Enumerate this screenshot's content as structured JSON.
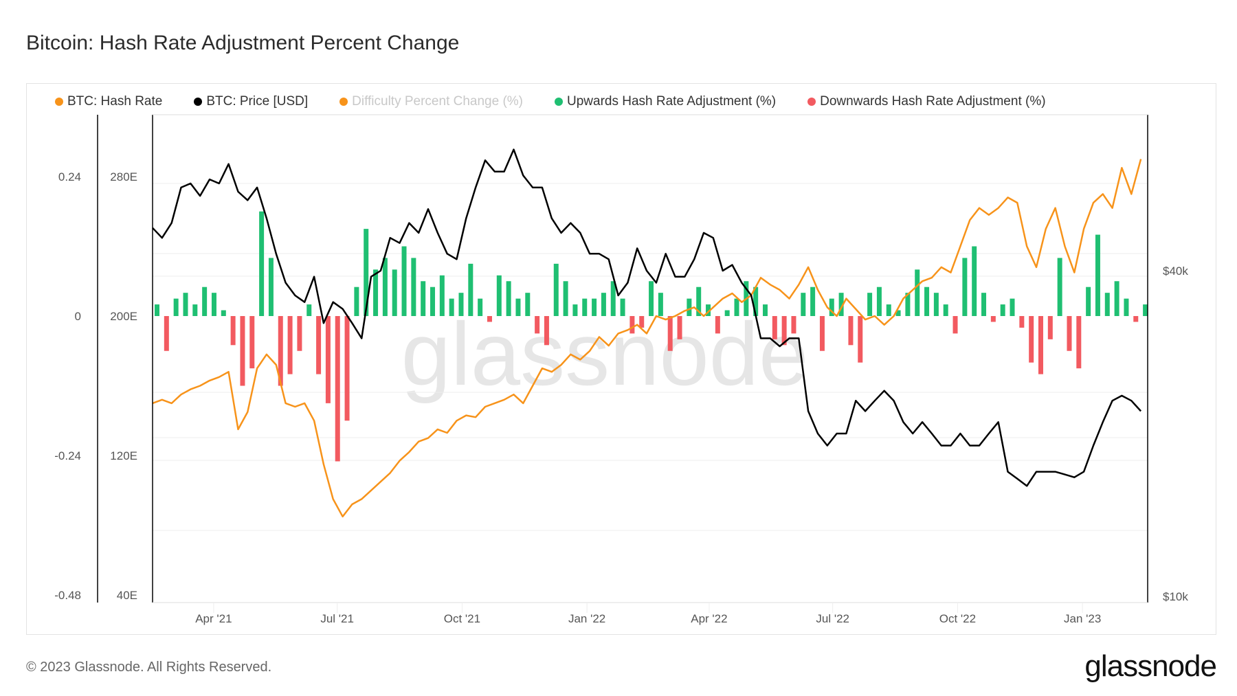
{
  "header": {
    "title": "Bitcoin: Hash Rate Adjustment Percent Change"
  },
  "footer": {
    "copyright": "© 2023 Glassnode. All Rights Reserved.",
    "logo": "glassnode",
    "watermark": "glassnode"
  },
  "colors": {
    "hash_rate": "#f7931a",
    "price": "#000000",
    "difficulty": "#f7931a",
    "up": "#1fbf72",
    "down": "#f25a60"
  },
  "chart_data": {
    "type": "line+bar",
    "title": "Bitcoin: Hash Rate Adjustment Percent Change",
    "legend_position": "top-left",
    "legend": [
      {
        "name": "BTC: Hash Rate",
        "color": "#f7931a",
        "active": true
      },
      {
        "name": "BTC: Price [USD]",
        "color": "#000000",
        "active": true
      },
      {
        "name": "Difficulty Percent Change (%)",
        "color": "#f7931a",
        "active": false
      },
      {
        "name": "Upwards Hash Rate Adjustment (%)",
        "color": "#1fbf72",
        "active": true
      },
      {
        "name": "Downwards Hash Rate Adjustment (%)",
        "color": "#f25a60",
        "active": true
      }
    ],
    "x_ticks": [
      "Apr '21",
      "Jul '21",
      "Oct '21",
      "Jan '22",
      "Apr '22",
      "Jul '22",
      "Oct '22",
      "Jan '23"
    ],
    "x_tick_dates": [
      "2021-04-01",
      "2021-07-01",
      "2021-10-01",
      "2022-01-01",
      "2022-04-01",
      "2022-07-01",
      "2022-10-01",
      "2023-01-01"
    ],
    "x_range": [
      "2021-02-15",
      "2023-02-17"
    ],
    "y_axis_pct": {
      "ticks": [
        "0.24",
        "0",
        "-0.24",
        "-0.48"
      ],
      "values": [
        0.24,
        0,
        -0.24,
        -0.48
      ],
      "range": [
        -0.48,
        0.24
      ]
    },
    "y_axis_hash": {
      "ticks": [
        "280E",
        "200E",
        "120E",
        "40E"
      ],
      "values": [
        280,
        200,
        120,
        40
      ],
      "unit": "EH/s"
    },
    "y_axis_price": {
      "ticks": [
        "$40k",
        "$10k"
      ],
      "values": [
        40000,
        10000
      ],
      "scale": "log"
    },
    "grid": true,
    "dates": [
      "2021-02-15",
      "2021-02-22",
      "2021-03-01",
      "2021-03-08",
      "2021-03-15",
      "2021-03-22",
      "2021-03-29",
      "2021-04-05",
      "2021-04-12",
      "2021-04-19",
      "2021-04-26",
      "2021-05-03",
      "2021-05-10",
      "2021-05-17",
      "2021-05-24",
      "2021-05-31",
      "2021-06-07",
      "2021-06-14",
      "2021-06-21",
      "2021-06-28",
      "2021-07-05",
      "2021-07-12",
      "2021-07-19",
      "2021-07-26",
      "2021-08-02",
      "2021-08-09",
      "2021-08-16",
      "2021-08-23",
      "2021-08-30",
      "2021-09-06",
      "2021-09-13",
      "2021-09-20",
      "2021-09-27",
      "2021-10-04",
      "2021-10-11",
      "2021-10-18",
      "2021-10-25",
      "2021-11-01",
      "2021-11-08",
      "2021-11-15",
      "2021-11-22",
      "2021-11-29",
      "2021-12-06",
      "2021-12-13",
      "2021-12-20",
      "2021-12-27",
      "2022-01-03",
      "2022-01-10",
      "2022-01-17",
      "2022-01-24",
      "2022-01-31",
      "2022-02-07",
      "2022-02-14",
      "2022-02-21",
      "2022-02-28",
      "2022-03-07",
      "2022-03-14",
      "2022-03-21",
      "2022-03-28",
      "2022-04-04",
      "2022-04-11",
      "2022-04-18",
      "2022-04-25",
      "2022-05-02",
      "2022-05-09",
      "2022-05-16",
      "2022-05-23",
      "2022-05-30",
      "2022-06-06",
      "2022-06-13",
      "2022-06-20",
      "2022-06-27",
      "2022-07-04",
      "2022-07-11",
      "2022-07-18",
      "2022-07-25",
      "2022-08-01",
      "2022-08-08",
      "2022-08-15",
      "2022-08-22",
      "2022-08-29",
      "2022-09-05",
      "2022-09-12",
      "2022-09-19",
      "2022-09-26",
      "2022-10-03",
      "2022-10-10",
      "2022-10-17",
      "2022-10-24",
      "2022-10-31",
      "2022-11-07",
      "2022-11-14",
      "2022-11-21",
      "2022-11-28",
      "2022-12-05",
      "2022-12-12",
      "2022-12-19",
      "2022-12-26",
      "2023-01-02",
      "2023-01-09",
      "2023-01-16",
      "2023-01-23",
      "2023-01-30",
      "2023-02-06",
      "2023-02-13"
    ],
    "series": [
      {
        "name": "BTC: Hash Rate",
        "type": "line",
        "axis": "hash",
        "values": [
          150,
          152,
          150,
          155,
          158,
          160,
          163,
          165,
          168,
          135,
          145,
          170,
          178,
          172,
          150,
          148,
          150,
          140,
          115,
          95,
          85,
          92,
          95,
          100,
          105,
          110,
          117,
          122,
          128,
          130,
          135,
          133,
          140,
          143,
          142,
          148,
          150,
          152,
          155,
          150,
          160,
          170,
          168,
          172,
          178,
          175,
          180,
          188,
          183,
          190,
          192,
          195,
          190,
          200,
          198,
          200,
          203,
          205,
          200,
          205,
          210,
          213,
          208,
          212,
          222,
          218,
          215,
          210,
          218,
          228,
          215,
          205,
          200,
          210,
          204,
          198,
          200,
          195,
          200,
          210,
          215,
          220,
          222,
          228,
          225,
          240,
          255,
          262,
          258,
          262,
          268,
          265,
          240,
          228,
          250,
          262,
          240,
          225,
          250,
          265,
          270,
          262,
          285,
          270,
          290
        ]
      },
      {
        "name": "BTC: Price [USD]",
        "type": "line",
        "axis": "price",
        "values": [
          48000,
          46000,
          49000,
          57000,
          58000,
          55000,
          59000,
          58000,
          63000,
          56000,
          54000,
          57000,
          50000,
          43000,
          38000,
          36000,
          35000,
          39000,
          32000,
          35000,
          34000,
          32000,
          30000,
          39000,
          40000,
          46000,
          45000,
          49000,
          47000,
          52000,
          47000,
          43000,
          42000,
          50000,
          57000,
          64000,
          61000,
          61000,
          67000,
          60000,
          57000,
          57000,
          50000,
          47000,
          49000,
          47000,
          43000,
          43000,
          42000,
          36000,
          38000,
          44000,
          40000,
          38000,
          43000,
          39000,
          39000,
          42000,
          47000,
          46000,
          40000,
          41000,
          38000,
          36000,
          30000,
          30000,
          29000,
          30000,
          30000,
          22000,
          20000,
          19000,
          20000,
          20000,
          23000,
          22000,
          23000,
          24000,
          23000,
          21000,
          20000,
          21000,
          20000,
          19000,
          19000,
          20000,
          19000,
          19000,
          20000,
          21000,
          17000,
          16500,
          16000,
          17000,
          17000,
          17000,
          16800,
          16600,
          17000,
          19000,
          21000,
          23000,
          23500,
          23000,
          22000
        ]
      },
      {
        "name": "Hash Rate Adjustment (%)",
        "type": "bar",
        "axis": "pct",
        "values": [
          0.02,
          -0.06,
          0.03,
          0.04,
          0.02,
          0.05,
          0.04,
          0.01,
          -0.05,
          -0.12,
          -0.09,
          0.18,
          0.1,
          -0.12,
          -0.1,
          -0.06,
          0.02,
          -0.1,
          -0.15,
          -0.25,
          -0.18,
          0.05,
          0.15,
          0.08,
          0.1,
          0.08,
          0.12,
          0.1,
          0.06,
          0.05,
          0.07,
          0.03,
          0.04,
          0.09,
          0.03,
          -0.01,
          0.07,
          0.06,
          0.03,
          0.04,
          -0.03,
          -0.05,
          0.09,
          0.06,
          0.02,
          0.03,
          0.03,
          0.04,
          0.06,
          0.03,
          -0.03,
          -0.02,
          0.06,
          0.04,
          -0.06,
          -0.04,
          0.03,
          0.05,
          0.02,
          -0.03,
          0.01,
          0.03,
          0.06,
          0.05,
          0.02,
          -0.04,
          -0.05,
          -0.03,
          0.04,
          0.05,
          -0.06,
          0.03,
          0.04,
          -0.05,
          -0.08,
          0.04,
          0.05,
          0.02,
          0.01,
          0.04,
          0.08,
          0.05,
          0.04,
          0.02,
          -0.03,
          0.1,
          0.12,
          0.04,
          -0.01,
          0.02,
          0.03,
          -0.02,
          -0.08,
          -0.1,
          -0.04,
          0.1,
          -0.06,
          -0.09,
          0.05,
          0.14,
          0.04,
          0.06,
          0.03,
          -0.01,
          0.02
        ]
      }
    ]
  }
}
